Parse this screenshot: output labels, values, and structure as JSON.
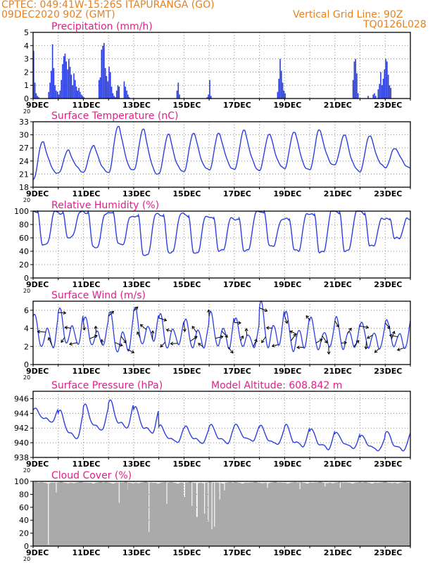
{
  "header": {
    "line1_left": "CPTEC:   049:41W-15:26S   ITAPURANGA (GO)",
    "line2_left": "09DEC2020 90Z (GMT)",
    "line1_right": "Vertical Grid Line: 90Z",
    "line2_right": "TQ0126L028"
  },
  "colors": {
    "header": "#e8801c",
    "title": "#e0208a",
    "series": "#2b3fe0",
    "cloud": "#aaaaaa",
    "grid": "#888888"
  },
  "chart_data": [
    {
      "type": "bar",
      "title": "Precipitation (mm/h)",
      "ylim": [
        0,
        5
      ],
      "yticks": [
        0,
        1,
        2,
        3,
        4,
        5
      ],
      "xticks": [
        "9DEC",
        "11DEC",
        "13DEC",
        "15DEC",
        "17DEC",
        "19DEC",
        "21DEC",
        "23DEC"
      ],
      "x_unit": "days since 09DEC 00Z",
      "x": [
        0.0,
        0.05,
        0.1,
        0.15,
        0.2,
        0.6,
        0.65,
        0.7,
        0.75,
        0.8,
        0.85,
        0.9,
        0.95,
        1.0,
        1.05,
        1.1,
        1.15,
        1.2,
        1.25,
        1.3,
        1.35,
        1.4,
        1.45,
        1.5,
        1.55,
        1.6,
        1.65,
        1.7,
        1.75,
        1.8,
        1.85,
        1.9,
        1.95,
        2.0,
        2.6,
        2.65,
        2.7,
        2.75,
        2.8,
        2.85,
        2.9,
        2.95,
        3.0,
        3.05,
        3.1,
        3.15,
        3.2,
        3.25,
        3.3,
        3.35,
        3.4,
        3.6,
        3.65,
        3.7,
        3.75,
        3.8,
        5.7,
        5.75,
        5.8,
        6.9,
        6.95,
        7.0,
        7.05,
        9.7,
        9.75,
        9.8,
        9.85,
        9.9,
        9.95,
        10.0,
        12.7,
        12.75,
        12.8,
        12.85,
        12.9,
        13.3,
        13.5,
        13.55,
        13.6,
        13.7,
        13.75,
        13.8,
        13.85,
        13.9,
        13.95,
        14.0,
        14.05,
        14.1,
        14.15,
        14.2
      ],
      "values": [
        3.6,
        1.2,
        0.4,
        0.2,
        0.1,
        0.5,
        1.2,
        2.1,
        4.1,
        2.3,
        1.0,
        0.6,
        0.5,
        0.3,
        0.6,
        1.4,
        2.6,
        3.2,
        3.4,
        2.8,
        2.2,
        3.0,
        2.4,
        1.8,
        1.0,
        1.9,
        1.4,
        0.9,
        0.6,
        0.8,
        0.5,
        0.3,
        0.2,
        0.1,
        1.4,
        1.6,
        3.7,
        4.0,
        4.2,
        2.3,
        1.7,
        1.3,
        2.4,
        2.0,
        0.9,
        0.4,
        0.2,
        0.1,
        0.6,
        1.0,
        0.9,
        1.3,
        0.9,
        0.6,
        0.3,
        0.1,
        0.6,
        1.2,
        0.3,
        0.1,
        0.3,
        1.4,
        0.2,
        0.5,
        1.5,
        3.0,
        2.1,
        1.2,
        0.6,
        0.4,
        1.4,
        2.8,
        3.0,
        1.9,
        0.4,
        0.2,
        0.3,
        0.4,
        0.2,
        0.7,
        1.1,
        2.0,
        1.0,
        1.5,
        2.2,
        3.0,
        2.8,
        1.8,
        1.0,
        0.8
      ]
    },
    {
      "type": "line",
      "title": "Surface Temperature (nC)",
      "ylim": [
        18,
        33
      ],
      "yticks": [
        18,
        21,
        24,
        27,
        30,
        33
      ],
      "xticks": [
        "9DEC",
        "11DEC",
        "13DEC",
        "15DEC",
        "17DEC",
        "19DEC",
        "21DEC",
        "23DEC"
      ],
      "x_unit": "days since 09DEC 00Z",
      "daily_min": [
        19.5,
        21.0,
        21.5,
        21.5,
        22.0,
        21.0,
        21.5,
        21.8,
        22.0,
        22.0,
        22.5,
        22.0,
        23.0,
        21.5,
        22.5
      ],
      "daily_max": [
        28.5,
        26.5,
        27.5,
        31.8,
        31.0,
        30.0,
        30.5,
        30.5,
        31.0,
        30.0,
        30.5,
        31.0,
        30.0,
        30.0,
        27.0
      ]
    },
    {
      "type": "line",
      "title": "Relative Humidity (%)",
      "ylim": [
        0,
        100
      ],
      "yticks": [
        0,
        20,
        40,
        60,
        80,
        100
      ],
      "xticks": [
        "9DEC",
        "11DEC",
        "13DEC",
        "15DEC",
        "17DEC",
        "19DEC",
        "21DEC",
        "23DEC"
      ],
      "x_unit": "days since 09DEC 00Z",
      "daily_max": [
        100,
        99,
        100,
        98,
        92,
        94,
        95,
        92,
        90,
        100,
        88,
        95,
        100,
        100,
        90
      ],
      "daily_min": [
        50,
        60,
        45,
        50,
        35,
        40,
        38,
        40,
        40,
        48,
        42,
        40,
        42,
        48,
        58
      ]
    },
    {
      "type": "line",
      "title": "Surface Wind (m/s)",
      "ylim": [
        0,
        7
      ],
      "yticks": [
        0,
        2,
        4,
        6
      ],
      "xticks": [
        "9DEC",
        "11DEC",
        "13DEC",
        "15DEC",
        "17DEC",
        "19DEC",
        "21DEC",
        "23DEC"
      ],
      "x_unit": "days since 09DEC 00Z",
      "daily_max": [
        5.8,
        6.3,
        5.2,
        5.8,
        6.2,
        5.6,
        5.2,
        6.0,
        5.0,
        6.8,
        5.8,
        5.2,
        5.3,
        4.8,
        5.0
      ],
      "daily_min": [
        1.0,
        1.3,
        1.5,
        0.5,
        1.5,
        1.2,
        1.2,
        1.0,
        1.2,
        1.0,
        0.8,
        1.0,
        1.0,
        1.2,
        1.2
      ],
      "arrows_note": "wind direction arrows plotted along the series"
    },
    {
      "type": "line",
      "title": "Surface Pressure (hPa)",
      "annotation": "Model Altitude: 608.842 m",
      "ylim": [
        938,
        947
      ],
      "yticks": [
        938,
        940,
        942,
        944,
        946
      ],
      "xticks": [
        "9DEC",
        "11DEC",
        "13DEC",
        "15DEC",
        "17DEC",
        "19DEC",
        "21DEC",
        "23DEC"
      ],
      "x_unit": "days since 09DEC 00Z",
      "daily_max": [
        944.8,
        944.5,
        945.2,
        945.8,
        945.0,
        942.5,
        942.3,
        942.5,
        942.5,
        942.3,
        942.5,
        942.0,
        941.5,
        941.0,
        941.5
      ],
      "daily_min": [
        942.5,
        939.8,
        941.0,
        941.2,
        940.5,
        939.5,
        939.5,
        939.5,
        939.8,
        939.2,
        938.8,
        938.5,
        938.8,
        938.6,
        938.5
      ]
    },
    {
      "type": "area",
      "title": "Cloud Cover (%)",
      "ylim": [
        0,
        100
      ],
      "yticks": [
        0,
        20,
        40,
        60,
        80,
        100
      ],
      "xticks": [
        "9DEC",
        "11DEC",
        "13DEC",
        "15DEC",
        "17DEC",
        "19DEC",
        "21DEC",
        "23DEC"
      ],
      "x_unit": "days since 09DEC 00Z",
      "typical": 98,
      "dips": [
        {
          "x": 0.6,
          "value": 2
        },
        {
          "x": 0.9,
          "value": 83
        },
        {
          "x": 3.4,
          "value": 67
        },
        {
          "x": 3.75,
          "value": 88
        },
        {
          "x": 4.6,
          "value": 22
        },
        {
          "x": 5.3,
          "value": 65
        },
        {
          "x": 6.0,
          "value": 76
        },
        {
          "x": 6.3,
          "value": 62
        },
        {
          "x": 6.5,
          "value": 45
        },
        {
          "x": 6.8,
          "value": 50
        },
        {
          "x": 6.95,
          "value": 38
        },
        {
          "x": 7.1,
          "value": 26
        },
        {
          "x": 7.2,
          "value": 30
        },
        {
          "x": 7.4,
          "value": 72
        },
        {
          "x": 7.6,
          "value": 86
        },
        {
          "x": 9.3,
          "value": 90
        },
        {
          "x": 10.6,
          "value": 88
        },
        {
          "x": 11.6,
          "value": 92
        },
        {
          "x": 12.2,
          "value": 90
        }
      ]
    }
  ]
}
